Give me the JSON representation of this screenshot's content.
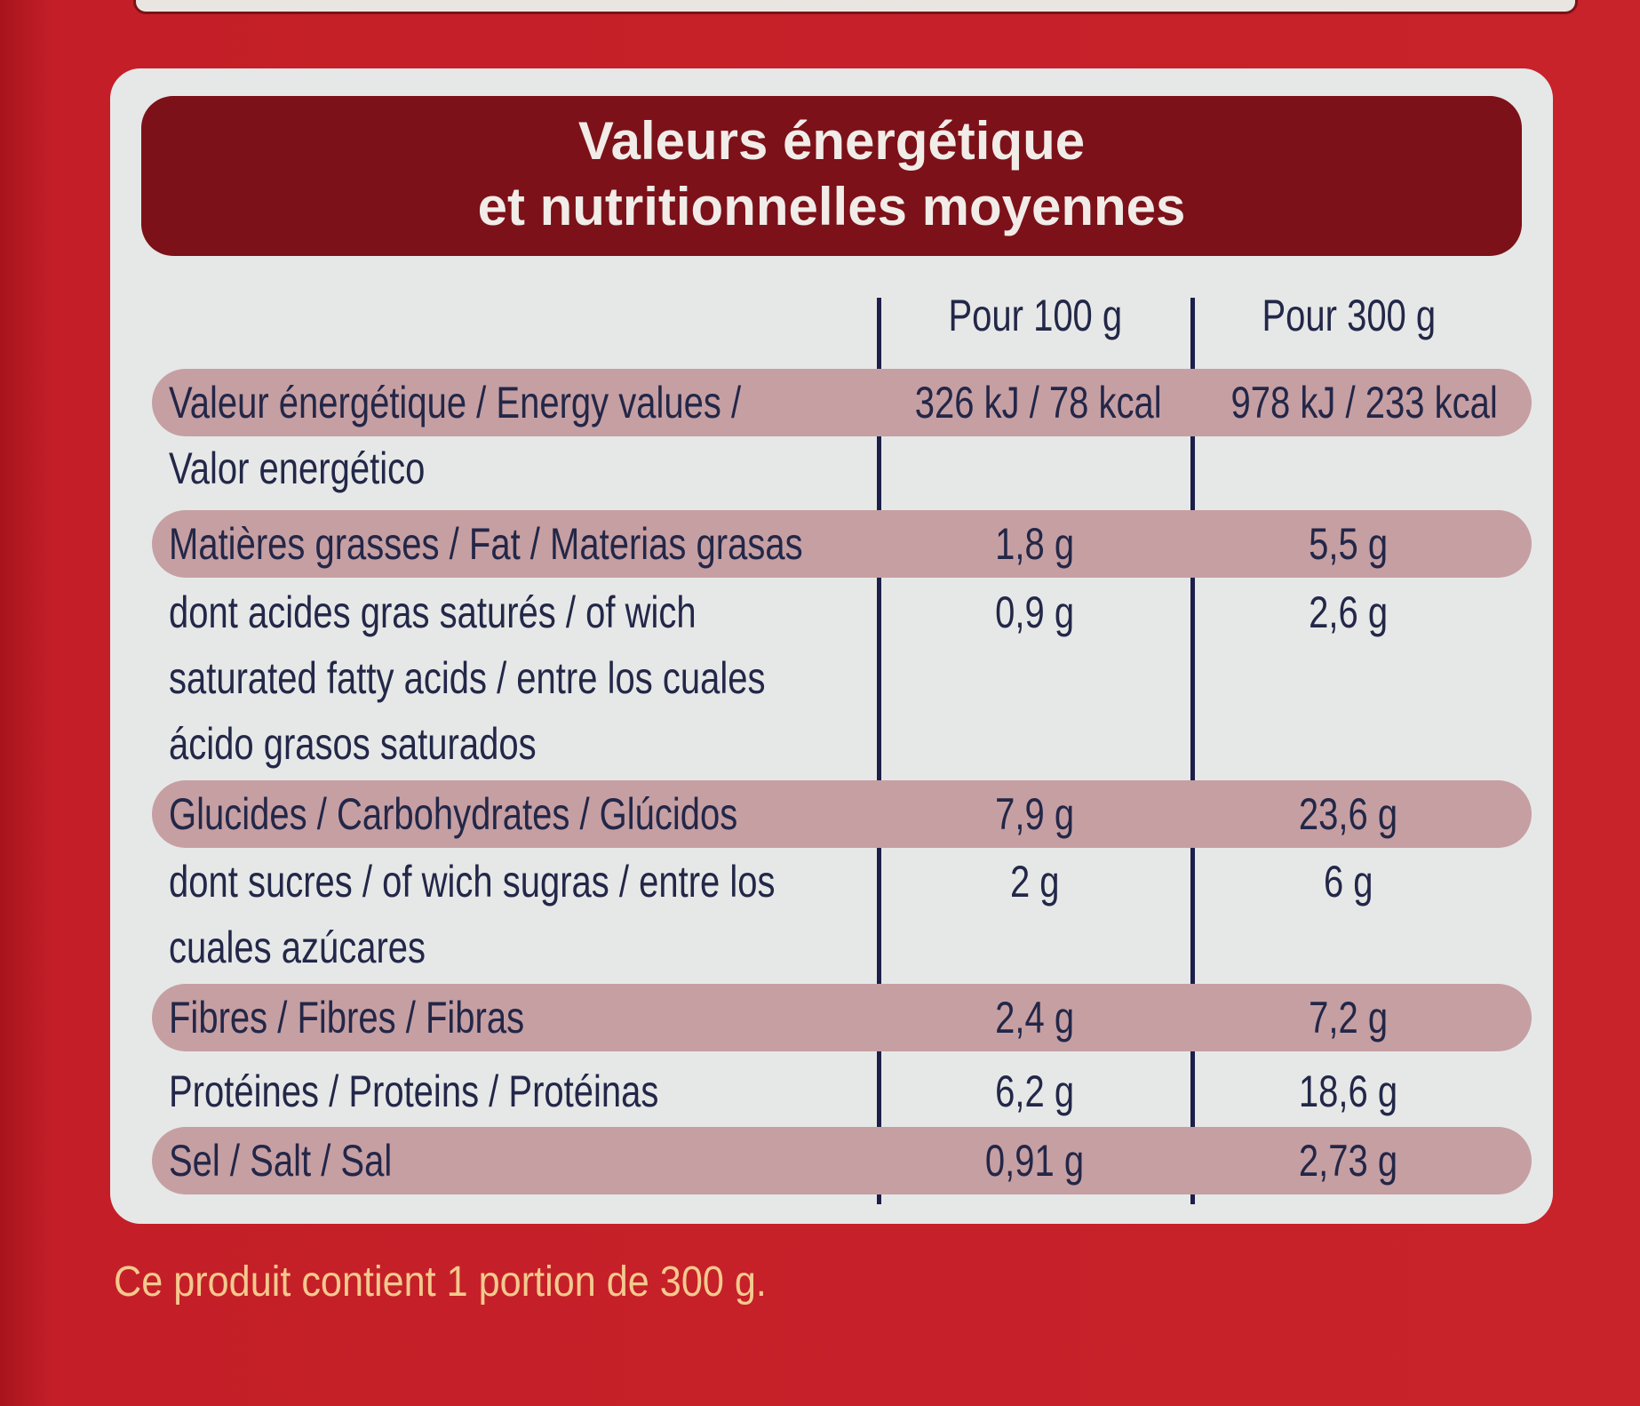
{
  "header": {
    "title_lines": [
      "Valeurs énergétique",
      "et nutritionnelles moyennes"
    ]
  },
  "table": {
    "columns": [
      "Pour 100 g",
      "Pour 300 g"
    ],
    "rows": [
      {
        "label_lines": [
          "Valeur énergétique / Energy values /",
          "Valor energético"
        ],
        "values": [
          "326 kJ / 78 kcal",
          "978 kJ / 233 kcal"
        ]
      },
      {
        "label_lines": [
          "Matières grasses / Fat / Materias grasas"
        ],
        "values": [
          "1,8 g",
          "5,5 g"
        ]
      },
      {
        "label_lines": [
          "dont acides gras saturés / of wich",
          "saturated fatty acids / entre los cuales",
          "ácido grasos saturados"
        ],
        "values": [
          "0,9 g",
          "2,6 g"
        ]
      },
      {
        "label_lines": [
          "Glucides / Carbohydrates / Glúcidos"
        ],
        "values": [
          "7,9 g",
          "23,6 g"
        ]
      },
      {
        "label_lines": [
          "dont sucres / of wich sugras / entre los",
          "cuales azúcares"
        ],
        "values": [
          "2 g",
          "6 g"
        ]
      },
      {
        "label_lines": [
          "Fibres / Fibres / Fibras"
        ],
        "values": [
          "2,4 g",
          "7,2 g"
        ]
      },
      {
        "label_lines": [
          "Protéines / Proteins / Protéinas"
        ],
        "values": [
          "6,2 g",
          "18,6 g"
        ]
      },
      {
        "label_lines": [
          "Sel / Salt / Sal"
        ],
        "values": [
          "0,91 g",
          "2,73 g"
        ]
      }
    ]
  },
  "footer": {
    "note": "Ce produit contient 1 portion de 300 g."
  }
}
